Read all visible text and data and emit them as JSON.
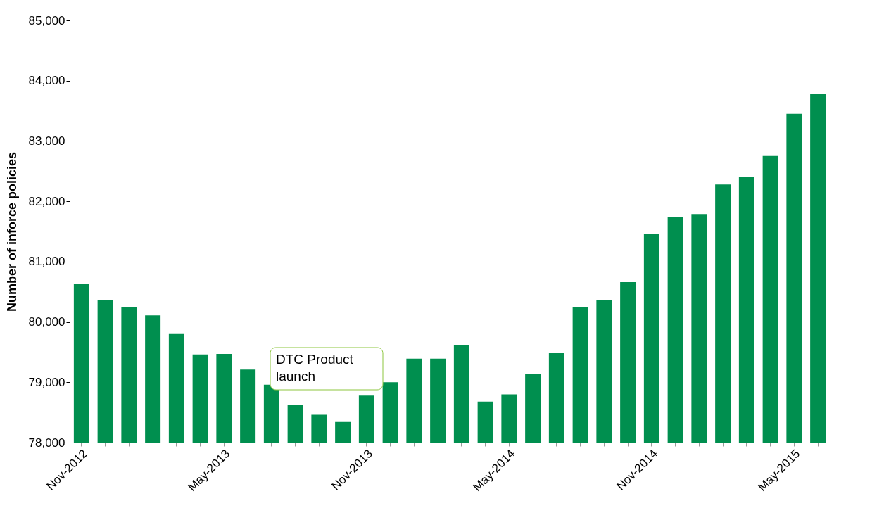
{
  "chart_data": {
    "type": "bar",
    "ylabel": "Number of inforce policies",
    "categories": [
      "Nov-2012",
      null,
      null,
      null,
      null,
      null,
      "May-2013",
      null,
      null,
      null,
      null,
      null,
      "Nov-2013",
      null,
      null,
      null,
      null,
      null,
      "May-2014",
      null,
      null,
      null,
      null,
      null,
      "Nov-2014",
      null,
      null,
      null,
      null,
      null,
      "May-2015",
      null
    ],
    "values": [
      80630,
      80360,
      80250,
      80110,
      79810,
      79460,
      79470,
      79210,
      78960,
      78630,
      78460,
      78340,
      78780,
      79000,
      79390,
      79390,
      79620,
      78680,
      78800,
      79140,
      79490,
      80250,
      80360,
      80660,
      81460,
      81740,
      81790,
      82280,
      82400,
      82750,
      83450,
      83780
    ],
    "color": "#008f4f",
    "ylim": [
      78000,
      85000
    ],
    "yticks": [
      {
        "value": 78000,
        "label": "78,000"
      },
      {
        "value": 79000,
        "label": "79,000"
      },
      {
        "value": 80000,
        "label": "80,000"
      },
      {
        "value": 81000,
        "label": "81,000"
      },
      {
        "value": 82000,
        "label": "82,000"
      },
      {
        "value": 83000,
        "label": "83,000"
      },
      {
        "value": 84000,
        "label": "84,000"
      },
      {
        "value": 85000,
        "label": "85,000"
      }
    ],
    "grid": false,
    "annotations": [
      "DTC Product launch"
    ]
  }
}
